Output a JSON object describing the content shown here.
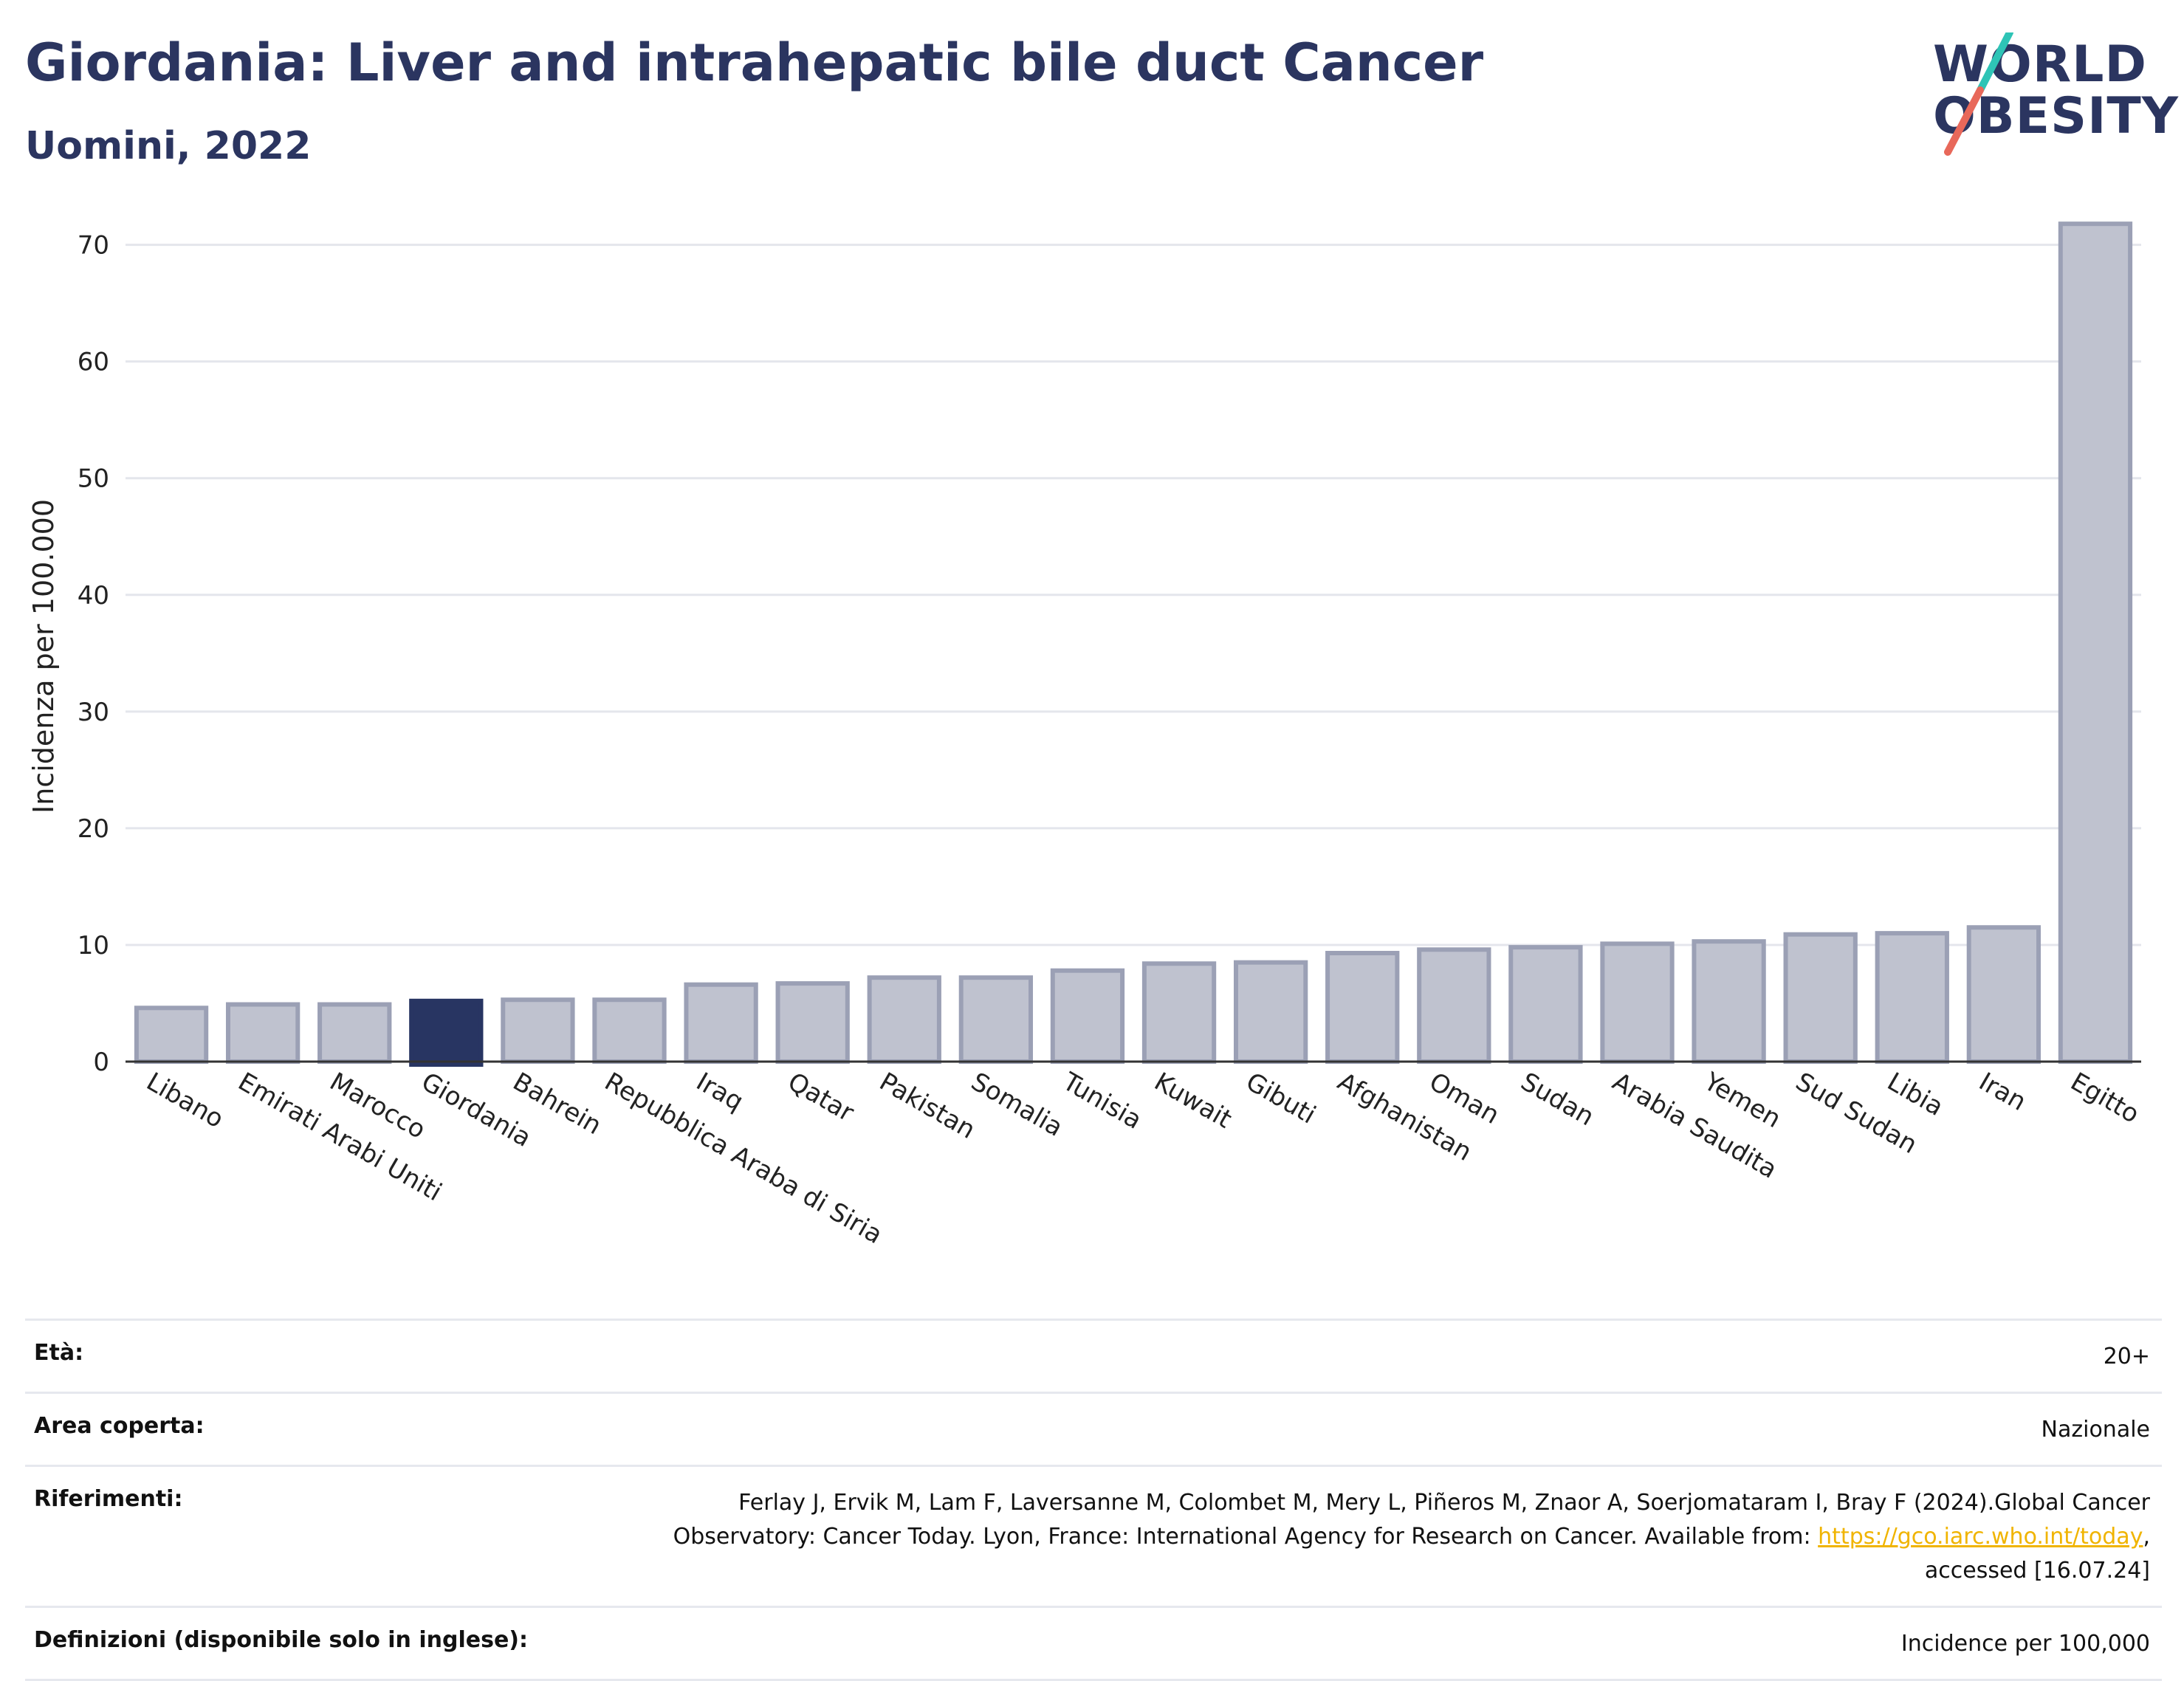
{
  "header": {
    "title": "Giordania: Liver and intrahepatic bile duct Cancer",
    "subtitle": "Uomini, 2022"
  },
  "logo": {
    "line1": "WORLD",
    "line2": "OBESITY",
    "colors": {
      "text": "#2b3560",
      "slash_top": "#2ec4b6",
      "slash_bottom": "#e8685a"
    }
  },
  "chart_data": {
    "type": "bar",
    "ylabel": "Incidenza per 100.000",
    "xlabel": "",
    "ylim": [
      0,
      72
    ],
    "yticks": [
      0,
      10,
      20,
      30,
      40,
      50,
      60,
      70
    ],
    "grid": true,
    "highlight": "Giordania",
    "colors": {
      "bar": "#bfc2cf",
      "bar_edge": "#9ba0b5",
      "highlight": "#283562"
    },
    "categories": [
      "Libano",
      "Emirati Arabi Uniti",
      "Marocco",
      "Giordania",
      "Bahrein",
      "Repubblica Araba di Siria",
      "Iraq",
      "Qatar",
      "Pakistan",
      "Somalia",
      "Tunisia",
      "Kuwait",
      "Gibuti",
      "Afghanistan",
      "Oman",
      "Sudan",
      "Arabia Saudita",
      "Yemen",
      "Sud Sudan",
      "Libia",
      "Iran",
      "Egitto"
    ],
    "values": [
      4.6,
      4.9,
      4.9,
      5.2,
      5.3,
      5.3,
      6.6,
      6.7,
      7.2,
      7.2,
      7.8,
      8.4,
      8.5,
      9.3,
      9.6,
      9.8,
      10.1,
      10.3,
      10.9,
      11.0,
      11.5,
      71.8
    ]
  },
  "meta": {
    "age_label": "Età:",
    "age_value": "20+",
    "area_label": "Area coperta:",
    "area_value": "Nazionale",
    "ref_label": "Riferimenti:",
    "ref_line1": "Ferlay J, Ervik M, Lam F, Laversanne M, Colombet M, Mery L, Piñeros M, Znaor A, Soerjomataram I, Bray F (2024).Global Cancer",
    "ref_line2_pre": "Observatory: Cancer Today. Lyon, France: International Agency for Research on Cancer. Available from: ",
    "ref_link": "https://gco.iarc.who.int/today",
    "ref_line2_post": ",",
    "ref_line3": "accessed [16.07.24]",
    "def_label": "Definizioni (disponibile solo in inglese):",
    "def_value": "Incidence per 100,000"
  }
}
